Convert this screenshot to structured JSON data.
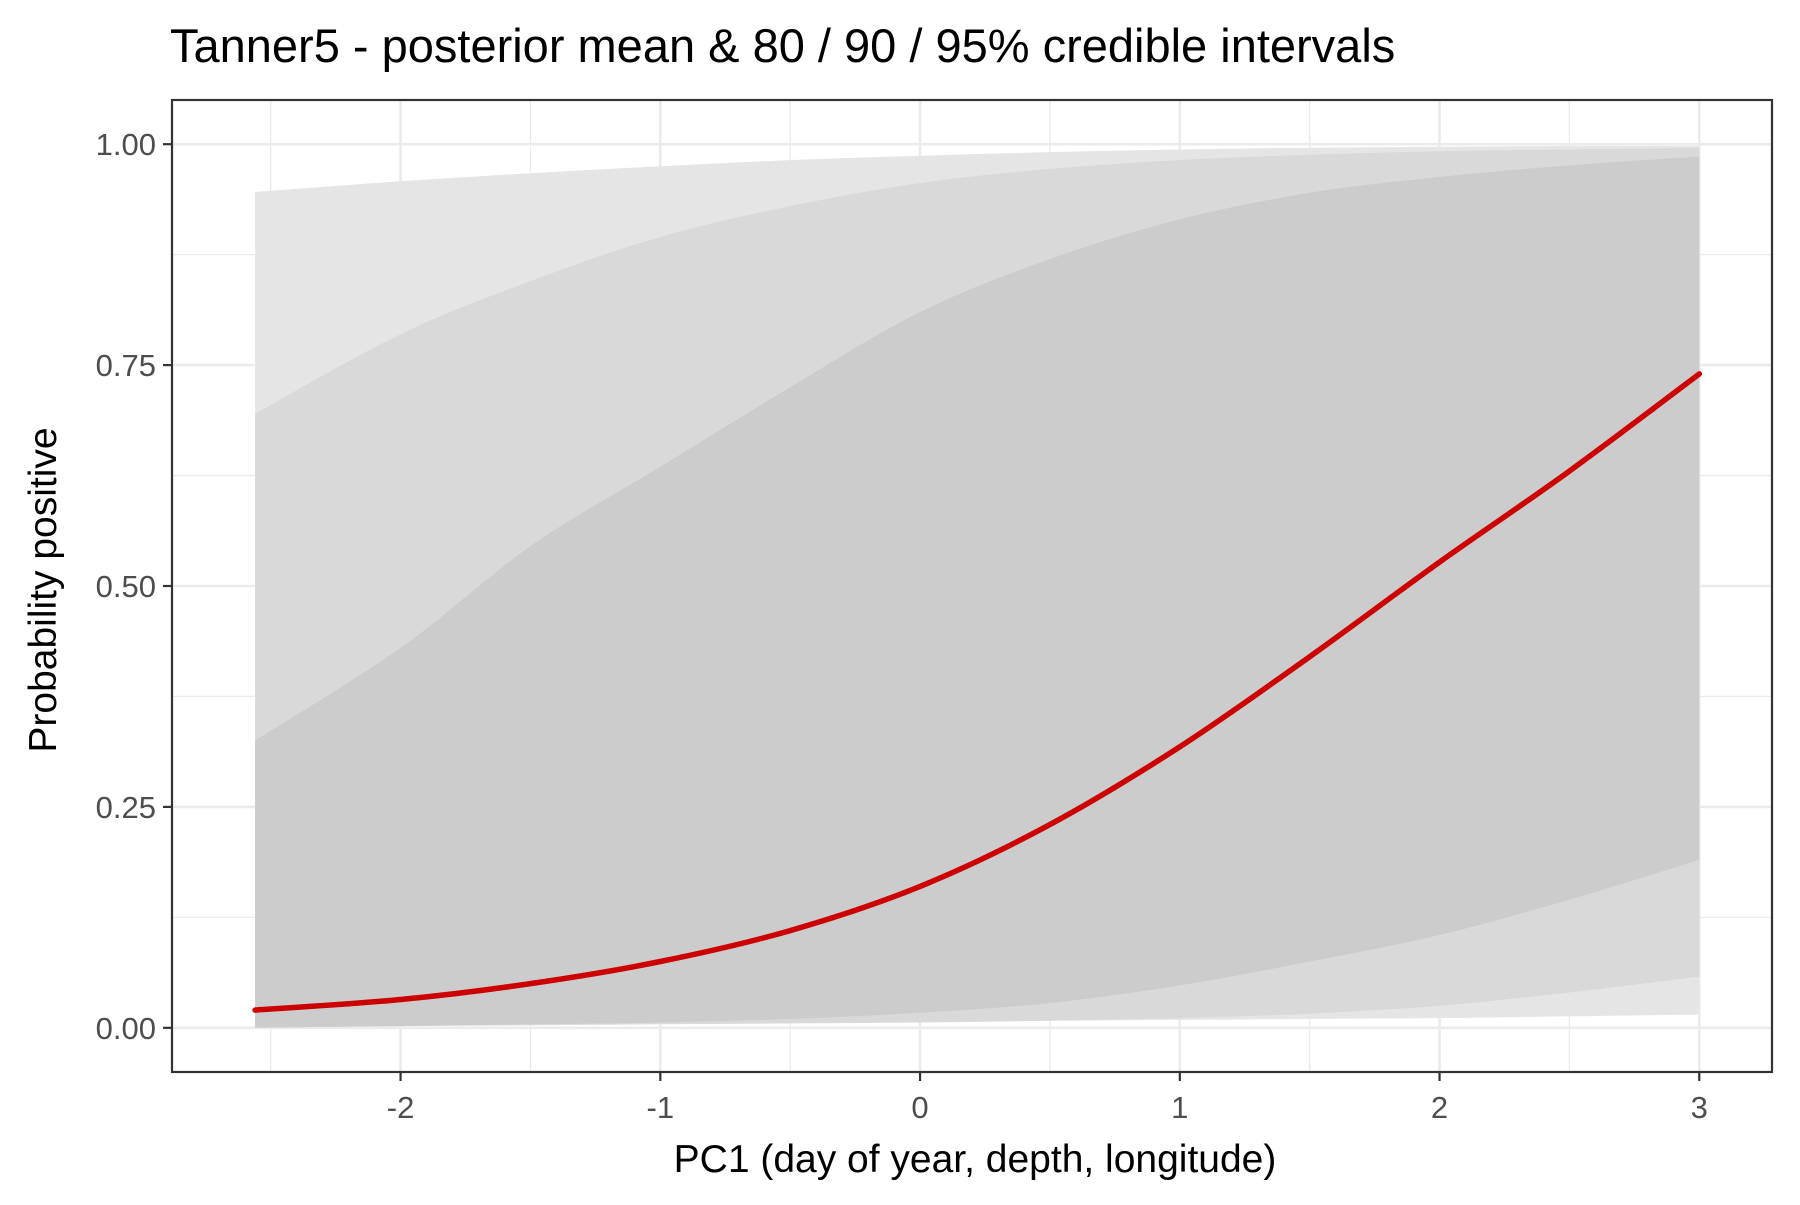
{
  "chart_data": {
    "type": "area",
    "title": "Tanner5 - posterior mean & 80 / 90 / 95% credible intervals",
    "xlabel": "PC1 (day of year, depth, longitude)",
    "ylabel": "Probability positive",
    "xlim": [
      -2.6,
      3.0
    ],
    "ylim": [
      0,
      1
    ],
    "x_ticks": [
      -2,
      -1,
      0,
      1,
      2,
      3
    ],
    "x_tick_labels": [
      "-2",
      "-1",
      "0",
      "1",
      "2",
      "3"
    ],
    "y_ticks": [
      0,
      0.25,
      0.5,
      0.75,
      1
    ],
    "y_tick_labels": [
      "0.00",
      "0.25",
      "0.50",
      "0.75",
      "1.00"
    ],
    "grid": true,
    "x": [
      -2.56,
      -2.0,
      -1.5,
      -1.0,
      -0.5,
      0.0,
      0.5,
      1.0,
      1.5,
      2.0,
      2.5,
      3.0
    ],
    "bands": [
      {
        "level": "95%",
        "color": "#e5e5e5",
        "lower": [
          0.002,
          0.003,
          0.004,
          0.005,
          0.006,
          0.007,
          0.008,
          0.009,
          0.01,
          0.011,
          0.013,
          0.015
        ],
        "upper": [
          0.946,
          0.958,
          0.967,
          0.975,
          0.982,
          0.987,
          0.991,
          0.994,
          0.996,
          0.997,
          0.998,
          0.998
        ]
      },
      {
        "level": "90%",
        "color": "#d9d9d9",
        "lower": [
          0.0,
          0.002,
          0.003,
          0.004,
          0.005,
          0.006,
          0.008,
          0.011,
          0.016,
          0.025,
          0.04,
          0.058
        ],
        "upper": [
          0.695,
          0.785,
          0.845,
          0.895,
          0.93,
          0.956,
          0.972,
          0.982,
          0.988,
          0.992,
          0.994,
          0.996
        ]
      },
      {
        "level": "80%",
        "color": "#cccccc",
        "lower": [
          0.0,
          0.002,
          0.004,
          0.006,
          0.01,
          0.017,
          0.028,
          0.048,
          0.075,
          0.105,
          0.145,
          0.19
        ],
        "upper": [
          0.325,
          0.43,
          0.545,
          0.635,
          0.725,
          0.81,
          0.87,
          0.915,
          0.945,
          0.963,
          0.976,
          0.986
        ]
      }
    ],
    "series": [
      {
        "color": "#cc0000",
        "values": [
          0.02,
          0.032,
          0.05,
          0.075,
          0.11,
          0.16,
          0.23,
          0.318,
          0.42,
          0.527,
          0.63,
          0.74
        ]
      }
    ]
  }
}
